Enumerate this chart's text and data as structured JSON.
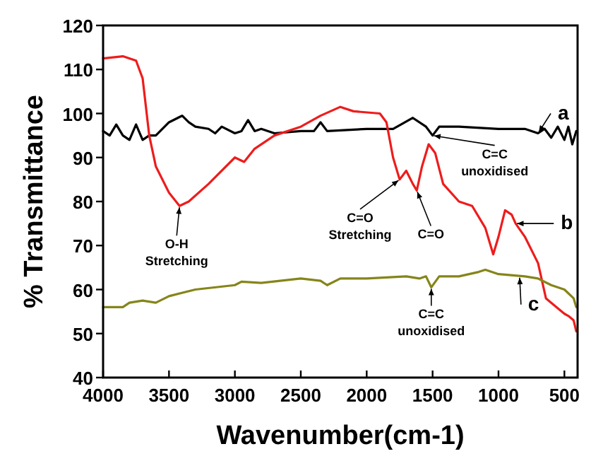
{
  "chart_data": {
    "type": "line",
    "xlabel": "Wavenumber(cm-1)",
    "ylabel": "% Transmittance",
    "xlim": [
      4000,
      400
    ],
    "ylim": [
      40,
      120
    ],
    "xticks": [
      4000,
      3500,
      3000,
      2500,
      2000,
      1500,
      1000,
      500
    ],
    "yticks": [
      40,
      50,
      60,
      70,
      80,
      90,
      100,
      110,
      120
    ],
    "grid": false,
    "marker": "none",
    "line_style": "solid",
    "series": [
      {
        "color": "#000000",
        "x": [
          4000,
          3950,
          3900,
          3850,
          3800,
          3750,
          3700,
          3650,
          3600,
          3500,
          3400,
          3350,
          3300,
          3200,
          3150,
          3100,
          3000,
          2950,
          2900,
          2850,
          2800,
          2700,
          2500,
          2400,
          2350,
          2300,
          2000,
          1800,
          1650,
          1550,
          1500,
          1450,
          1300,
          1000,
          800,
          700,
          650,
          600,
          550,
          500,
          470,
          440,
          410
        ],
        "values": [
          96,
          95,
          97.5,
          95,
          94,
          97.5,
          94,
          95,
          95,
          98,
          99.5,
          98,
          97,
          96.5,
          95.5,
          97,
          95.5,
          96,
          98.5,
          96,
          96.5,
          95.5,
          96,
          96,
          98,
          96,
          96.5,
          96.5,
          99,
          97,
          95,
          97,
          97,
          96.5,
          96.5,
          95.5,
          96.5,
          94.5,
          97,
          94,
          97,
          93,
          96
        ]
      },
      {
        "color": "#ee1c1c",
        "x": [
          4000,
          3850,
          3750,
          3700,
          3650,
          3600,
          3500,
          3420,
          3350,
          3200,
          3000,
          2930,
          2850,
          2700,
          2500,
          2350,
          2200,
          2100,
          1900,
          1850,
          1800,
          1750,
          1700,
          1650,
          1620,
          1580,
          1530,
          1480,
          1420,
          1300,
          1200,
          1100,
          1040,
          1000,
          950,
          900,
          870,
          800,
          700,
          640,
          600,
          500,
          470,
          430,
          410
        ],
        "values": [
          112.5,
          113,
          112,
          108,
          95,
          88,
          82,
          79,
          80,
          84,
          90,
          89,
          92,
          95,
          97,
          99.5,
          101.5,
          100.5,
          100,
          98,
          90,
          85,
          87,
          84,
          82.5,
          88,
          93,
          91,
          84,
          80,
          79,
          74,
          68,
          72,
          78,
          77,
          75,
          72,
          66,
          58,
          57,
          54.5,
          54,
          53,
          50.5
        ]
      },
      {
        "color": "#85851a",
        "x": [
          4000,
          3850,
          3800,
          3700,
          3600,
          3500,
          3300,
          3000,
          2950,
          2800,
          2500,
          2350,
          2300,
          2200,
          2000,
          1700,
          1600,
          1550,
          1510,
          1450,
          1300,
          1150,
          1100,
          1000,
          800,
          700,
          600,
          500,
          430,
          410
        ],
        "values": [
          56,
          56,
          57,
          57.5,
          57,
          58.5,
          60,
          61,
          61.8,
          61.5,
          62.5,
          62,
          61,
          62.5,
          62.5,
          63,
          62.5,
          63,
          60.5,
          63,
          63,
          64,
          64.5,
          63.5,
          63,
          62.5,
          61,
          60,
          58,
          56
        ]
      }
    ],
    "annotations": [
      {
        "text": "a",
        "x": 700,
        "y": 95.5
      },
      {
        "text": "b",
        "x": 870,
        "y": 75
      },
      {
        "text": "c",
        "x": 840,
        "y": 63
      },
      {
        "text": "O-H\nStretching",
        "x": 3420,
        "y": 79
      },
      {
        "text": "C=O\nStretching",
        "x": 1750,
        "y": 85
      },
      {
        "text": "C=O",
        "x": 1620,
        "y": 82.5
      },
      {
        "text": "C=C\nunoxidised",
        "x": 1500,
        "y": 95
      },
      {
        "text": "C=C\nunoxidised",
        "x": 1510,
        "y": 60.5
      }
    ]
  }
}
